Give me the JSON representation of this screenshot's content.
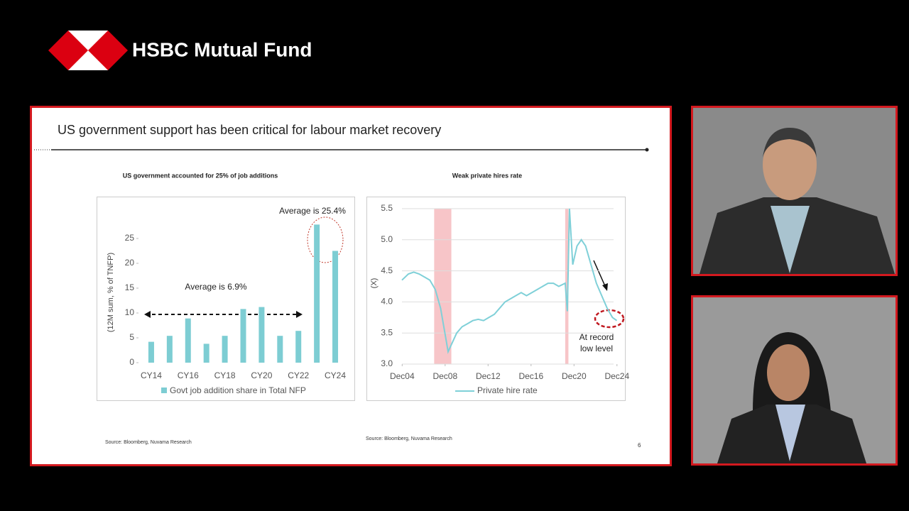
{
  "header": {
    "brand": "HSBC Mutual Fund"
  },
  "slide": {
    "title": "US government support has been critical for labour market recovery",
    "page_number": 6,
    "sources": [
      "Source: Bloomberg, Nuvama Research",
      "Source: Bloomberg, Nuvama Research"
    ]
  },
  "chart_data": [
    {
      "type": "bar",
      "title": "US government accounted for 25% of job additions",
      "y_label": "(12M sum, % of TNFP)",
      "categories": [
        "CY14",
        null,
        "CY16",
        null,
        "CY18",
        null,
        "CY20",
        null,
        "CY22",
        null,
        "CY24"
      ],
      "series": [
        {
          "name": "Govt job addition share in Total NFP",
          "color": "#7dcdd3",
          "values": [
            4.2,
            5.4,
            8.9,
            3.8,
            5.4,
            10.8,
            11.2,
            5.4,
            6.4,
            27.8,
            22.5
          ]
        }
      ],
      "ylim": [
        0,
        30
      ],
      "yticks": [
        0,
        5,
        10,
        15,
        20,
        25
      ],
      "grid": false,
      "annotations": [
        "Average is 25.4%",
        "Average is 6.9%"
      ]
    },
    {
      "type": "line",
      "title": "Weak private hires rate",
      "y_label": "(X)",
      "x": [
        2004.9,
        2005.5,
        2006,
        2006.5,
        2007,
        2007.5,
        2008,
        2008.5,
        2009,
        2009.2,
        2009.6,
        2010,
        2010.5,
        2011,
        2011.5,
        2012,
        2012.5,
        2013,
        2013.5,
        2014,
        2014.5,
        2015,
        2015.5,
        2016,
        2016.5,
        2017,
        2017.5,
        2018,
        2018.5,
        2019,
        2019.5,
        2020.1,
        2020.3,
        2020.5,
        2020.8,
        2021.2,
        2021.6,
        2022,
        2022.5,
        2023,
        2023.5,
        2024,
        2024.5,
        2024.9
      ],
      "series": [
        {
          "name": "Private hire rate",
          "color": "#7fd0d8",
          "values": [
            4.35,
            4.45,
            4.48,
            4.45,
            4.4,
            4.35,
            4.2,
            3.9,
            3.4,
            3.2,
            3.35,
            3.5,
            3.6,
            3.65,
            3.7,
            3.72,
            3.7,
            3.75,
            3.8,
            3.9,
            4.0,
            4.05,
            4.1,
            4.15,
            4.1,
            4.15,
            4.2,
            4.25,
            4.3,
            4.3,
            4.25,
            4.3,
            3.85,
            5.5,
            4.6,
            4.9,
            5.0,
            4.9,
            4.6,
            4.3,
            4.1,
            3.9,
            3.75,
            3.7
          ]
        }
      ],
      "shaded_periods": [
        [
          2007.9,
          2009.5
        ],
        [
          2020.1,
          2020.4
        ]
      ],
      "shade_color": "#f7c5c8",
      "xlim": [
        2004.9,
        2025
      ],
      "xticks": [
        {
          "value": 2004.92,
          "label": "Dec04"
        },
        {
          "value": 2008.92,
          "label": "Dec08"
        },
        {
          "value": 2012.92,
          "label": "Dec12"
        },
        {
          "value": 2016.92,
          "label": "Dec16"
        },
        {
          "value": 2020.92,
          "label": "Dec20"
        },
        {
          "value": 2024.92,
          "label": "Dec24"
        }
      ],
      "ylim": [
        3.0,
        5.5
      ],
      "yticks": [
        {
          "value": 3.0,
          "label": "3.0"
        },
        {
          "value": 3.5,
          "label": "3.5"
        },
        {
          "value": 4.0,
          "label": "4.0"
        },
        {
          "value": 4.5,
          "label": "4.5"
        },
        {
          "value": 5.0,
          "label": "5.0"
        },
        {
          "value": 5.5,
          "label": "5.5"
        }
      ],
      "grid": true,
      "annotations": [
        [
          "At record",
          "low level"
        ]
      ]
    }
  ]
}
